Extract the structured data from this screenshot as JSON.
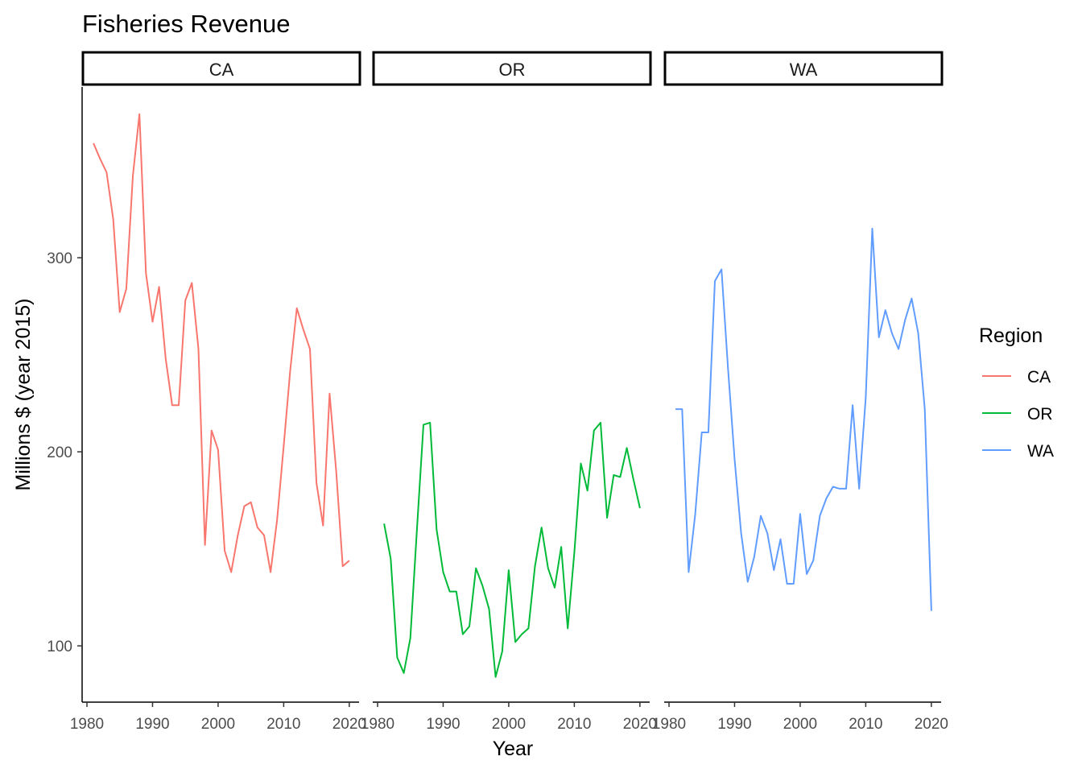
{
  "chart_data": {
    "type": "line",
    "title": "Fisheries Revenue",
    "xlabel": "Year",
    "ylabel": "Millions $ (year 2015)",
    "xlim": [
      1980,
      2021
    ],
    "ylim": [
      71,
      388
    ],
    "x_ticks": [
      1980,
      1990,
      2000,
      2010,
      2020
    ],
    "y_ticks": [
      100,
      200,
      300
    ],
    "grid": false,
    "legend": {
      "title": "Region",
      "position": "right"
    },
    "facets": [
      "CA",
      "OR",
      "WA"
    ],
    "series": [
      {
        "name": "CA",
        "color": "#F8766D",
        "x": [
          1981,
          1982,
          1983,
          1984,
          1985,
          1986,
          1987,
          1988,
          1989,
          1990,
          1991,
          1992,
          1993,
          1994,
          1995,
          1996,
          1997,
          1998,
          1999,
          2000,
          2001,
          2002,
          2003,
          2004,
          2005,
          2006,
          2007,
          2008,
          2009,
          2010,
          2011,
          2012,
          2013,
          2014,
          2015,
          2016,
          2017,
          2018,
          2019,
          2020
        ],
        "y": [
          359,
          351,
          344,
          320,
          272,
          284,
          342,
          374,
          292,
          267,
          285,
          248,
          224,
          224,
          278,
          287,
          253,
          152,
          211,
          201,
          149,
          138,
          157,
          172,
          174,
          161,
          157,
          138,
          165,
          203,
          242,
          274,
          263,
          253,
          184,
          162,
          230,
          190,
          141,
          144
        ]
      },
      {
        "name": "OR",
        "color": "#00BA38",
        "x": [
          1981,
          1982,
          1983,
          1984,
          1985,
          1986,
          1987,
          1988,
          1989,
          1990,
          1991,
          1992,
          1993,
          1994,
          1995,
          1996,
          1997,
          1998,
          1999,
          2000,
          2001,
          2002,
          2003,
          2004,
          2005,
          2006,
          2007,
          2008,
          2009,
          2010,
          2011,
          2012,
          2013,
          2014,
          2015,
          2016,
          2017,
          2018,
          2019,
          2020
        ],
        "y": [
          163,
          145,
          94,
          86,
          104,
          160,
          214,
          215,
          160,
          138,
          128,
          128,
          106,
          110,
          140,
          131,
          119,
          84,
          97,
          139,
          102,
          106,
          109,
          141,
          161,
          140,
          130,
          151,
          109,
          148,
          194,
          180,
          211,
          215,
          166,
          188,
          187,
          202,
          186,
          171
        ]
      },
      {
        "name": "WA",
        "color": "#619CFF",
        "x": [
          1981,
          1982,
          1983,
          1984,
          1985,
          1986,
          1987,
          1988,
          1989,
          1990,
          1991,
          1992,
          1993,
          1994,
          1995,
          1996,
          1997,
          1998,
          1999,
          2000,
          2001,
          2002,
          2003,
          2004,
          2005,
          2006,
          2007,
          2008,
          2009,
          2010,
          2011,
          2012,
          2013,
          2014,
          2015,
          2016,
          2017,
          2018,
          2019,
          2020
        ],
        "y": [
          222,
          222,
          138,
          168,
          210,
          210,
          288,
          294,
          243,
          196,
          158,
          133,
          146,
          167,
          158,
          139,
          155,
          132,
          132,
          168,
          137,
          144,
          167,
          176,
          182,
          181,
          181,
          224,
          181,
          228,
          315,
          259,
          273,
          261,
          253,
          268,
          279,
          261,
          222,
          118
        ]
      }
    ]
  }
}
